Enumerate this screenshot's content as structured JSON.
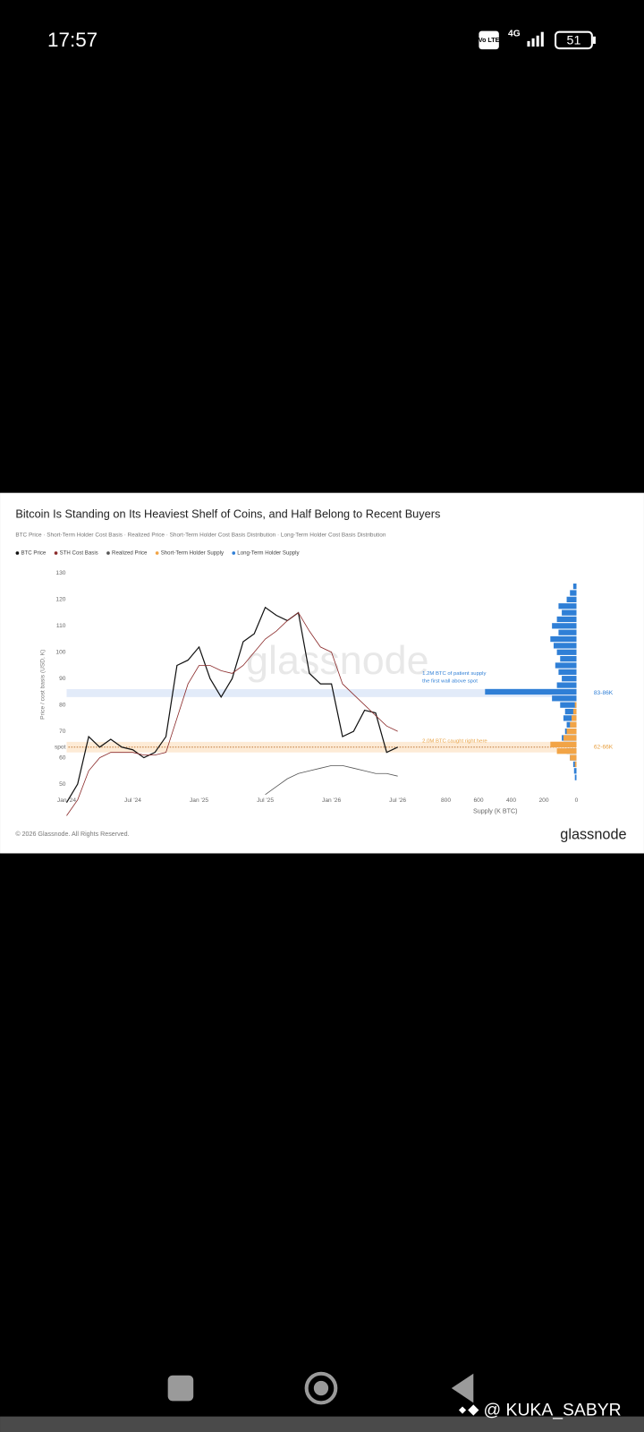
{
  "status_bar": {
    "time": "17:57",
    "volte": "Vo LTE",
    "network": "4G",
    "battery": "51"
  },
  "chart_data": [
    {
      "type": "line",
      "title": "Bitcoin Is Standing on Its Heaviest Shelf of Coins, and Half Belong to Recent Buyers",
      "subtitle": "BTC Price · Short-Term Holder Cost Basis · Realized Price · Short-Term Holder Cost Basis Distribution · Long-Term Holder Cost Basis Distribution",
      "ylabel": "Price / cost basis (USD, K)",
      "watermark": "glassnode",
      "x": [
        0,
        1,
        2,
        3,
        4,
        5,
        6,
        7,
        8,
        9,
        10,
        11,
        12,
        13,
        14,
        15,
        16,
        17,
        18,
        19,
        20,
        21,
        22,
        23,
        24,
        25,
        26,
        27,
        28,
        29,
        30
      ],
      "xlim": [
        0,
        30
      ],
      "xticks": [
        {
          "value": 0,
          "label": "Jan '24"
        },
        {
          "value": 6,
          "label": "Jul '24"
        },
        {
          "value": 12,
          "label": "Jan '25"
        },
        {
          "value": 18,
          "label": "Jul '25"
        },
        {
          "value": 24,
          "label": "Jan '26"
        },
        {
          "value": 30,
          "label": "Jul '26"
        }
      ],
      "ylim": [
        45,
        130
      ],
      "yticks": [
        50,
        60,
        {
          "value": 64,
          "label": "spot"
        },
        70,
        80,
        90,
        100,
        110,
        120,
        130
      ],
      "series": [
        {
          "name": "BTC Price",
          "color": "#111111",
          "values": [
            43,
            50,
            68,
            64,
            67,
            64,
            63,
            60,
            62,
            68,
            95,
            97,
            102,
            90,
            83,
            90,
            104,
            107,
            117,
            114,
            112,
            115,
            92,
            88,
            88,
            68,
            70,
            78,
            77,
            62,
            64
          ]
        },
        {
          "name": "STH Cost Basis",
          "color": "#8b2b2b",
          "values": [
            38,
            44,
            55,
            60,
            62,
            62,
            62,
            61,
            61,
            62,
            75,
            88,
            95,
            95,
            93,
            92,
            95,
            100,
            105,
            108,
            112,
            115,
            108,
            102,
            100,
            88,
            84,
            80,
            76,
            72,
            70
          ]
        },
        {
          "name": "Realized Price",
          "color": "#555555",
          "values": [
            null,
            null,
            null,
            null,
            null,
            null,
            null,
            null,
            null,
            null,
            null,
            null,
            null,
            null,
            null,
            null,
            null,
            null,
            46,
            49,
            52,
            54,
            55,
            56,
            57,
            57,
            56,
            55,
            54,
            54,
            53
          ]
        }
      ],
      "bands": [
        {
          "ylim": [
            83,
            86
          ],
          "color": "#dbe6f7",
          "label": "83-86K",
          "label_color": "#2f7fd6"
        },
        {
          "ylim": [
            62,
            66
          ],
          "color": "#fde6cc",
          "label": "62-66K",
          "label_color": "#e8a040"
        }
      ],
      "annotations": [
        "1.2M BTC of patient supply",
        "the first wall above spot",
        "2.0M BTC caught right here"
      ]
    },
    {
      "type": "barh",
      "xlabel": "Supply (K BTC)",
      "x_reversed": true,
      "xlim": [
        0,
        1000
      ],
      "xticks": [
        800,
        600,
        400,
        200,
        0
      ],
      "ylim": [
        45,
        130
      ],
      "y": [
        52.5,
        55,
        57.5,
        60,
        62.5,
        65,
        67.5,
        70,
        72.5,
        75,
        77.5,
        80,
        82.5,
        85,
        87.5,
        90,
        92.5,
        95,
        97.5,
        100,
        102.5,
        105,
        107.5,
        110,
        112.5,
        115,
        117.5,
        120,
        122.5,
        125
      ],
      "series": [
        {
          "name": "Short-Term Holder Supply",
          "color": "#f2a446",
          "values": [
            0,
            0,
            10,
            40,
            120,
            160,
            80,
            60,
            40,
            30,
            20,
            10,
            0,
            0,
            0,
            0,
            0,
            0,
            0,
            0,
            0,
            0,
            0,
            0,
            0,
            0,
            0,
            0,
            0,
            0
          ]
        },
        {
          "name": "Long-Term Holder Supply",
          "color": "#2f7fd6",
          "values": [
            10,
            15,
            20,
            40,
            60,
            80,
            90,
            70,
            60,
            80,
            70,
            100,
            150,
            560,
            120,
            90,
            110,
            130,
            100,
            120,
            140,
            160,
            110,
            150,
            120,
            90,
            110,
            60,
            40,
            20
          ]
        }
      ]
    }
  ],
  "footer": {
    "copyright": "© 2026 Glassnode. All Rights Reserved.",
    "logo": "glassnode"
  },
  "watermark": "@ KUKA_SABYR"
}
